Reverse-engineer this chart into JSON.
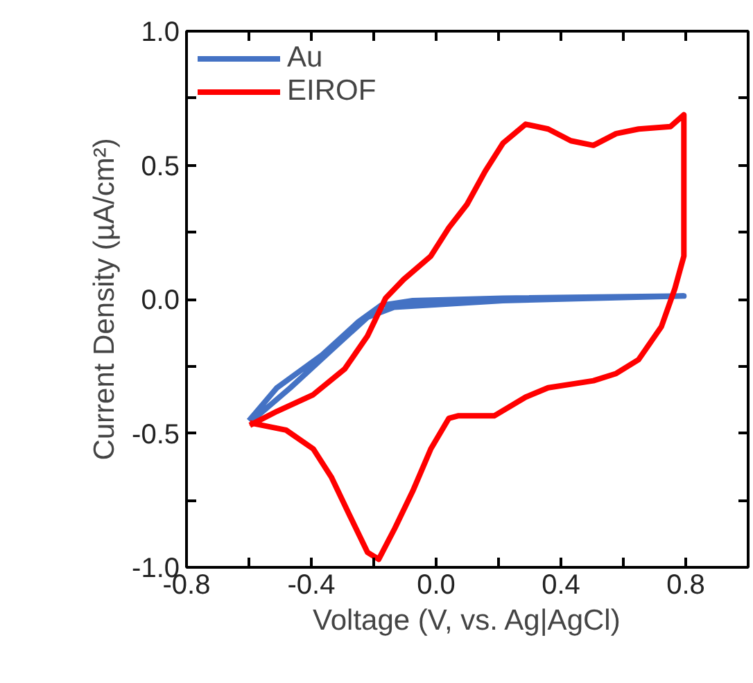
{
  "chart_data": {
    "type": "line",
    "xlabel": "Voltage (V, vs. Ag|AgCl)",
    "ylabel": "Current Density (µA/cm²)",
    "xlim": [
      -0.8,
      1.0
    ],
    "ylim": [
      -1.0,
      1.0
    ],
    "xticks": [
      -0.8,
      {
        "value": -0.6,
        "label": null
      },
      -0.4,
      {
        "value": -0.2,
        "label": null
      },
      {
        "value": 0,
        "label": "0.0"
      },
      {
        "value": 0.2,
        "label": null
      },
      0.4,
      {
        "value": 0.6,
        "label": null
      },
      0.8,
      {
        "value": 1.0,
        "label": null
      }
    ],
    "yticks": [
      {
        "value": -1,
        "label": "-1.0"
      },
      {
        "value": -0.75,
        "label": null
      },
      -0.5,
      {
        "value": -0.25,
        "label": null
      },
      {
        "value": 0,
        "label": "0.0"
      },
      {
        "value": 0.25,
        "label": null
      },
      0.5,
      {
        "value": 0.75,
        "label": null
      },
      {
        "value": 1,
        "label": "1.0"
      }
    ],
    "grid": false,
    "legend": "top left",
    "marker": "none",
    "line_style": "solid",
    "series": [
      {
        "name": "Au",
        "color": "#4472c4",
        "x": [
          -0.6,
          -0.51,
          -0.365,
          -0.249,
          -0.177,
          -0.075,
          0.214,
          0.794,
          0.214,
          -0.135,
          -0.22,
          -0.336,
          -0.467,
          -0.59
        ],
        "values": [
          -0.453,
          -0.33,
          -0.207,
          -0.084,
          -0.023,
          -0.005,
          0.004,
          0.012,
          -0.005,
          -0.03,
          -0.067,
          -0.19,
          -0.33,
          -0.453
        ]
      },
      {
        "name": "EIROF",
        "color": "#ff0000",
        "x": [
          -0.597,
          -0.51,
          -0.394,
          -0.293,
          -0.22,
          -0.162,
          -0.104,
          -0.017,
          0.041,
          0.099,
          0.157,
          0.214,
          0.287,
          0.359,
          0.432,
          0.504,
          0.577,
          0.649,
          0.751,
          0.794,
          0.794,
          0.765,
          0.722,
          0.649,
          0.577,
          0.504,
          0.359,
          0.287,
          0.186,
          0.07,
          0.041,
          -0.017,
          -0.075,
          -0.133,
          -0.184,
          -0.22,
          -0.278,
          -0.336,
          -0.394,
          -0.481,
          -0.597
        ],
        "values": [
          -0.47,
          -0.418,
          -0.356,
          -0.26,
          -0.137,
          0.004,
          0.074,
          0.161,
          0.267,
          0.354,
          0.477,
          0.582,
          0.653,
          0.635,
          0.591,
          0.574,
          0.618,
          0.635,
          0.644,
          0.688,
          0.161,
          0.039,
          -0.102,
          -0.225,
          -0.277,
          -0.304,
          -0.33,
          -0.365,
          -0.435,
          -0.435,
          -0.444,
          -0.558,
          -0.716,
          -0.856,
          -0.97,
          -0.944,
          -0.804,
          -0.663,
          -0.558,
          -0.488,
          -0.461
        ]
      }
    ]
  }
}
